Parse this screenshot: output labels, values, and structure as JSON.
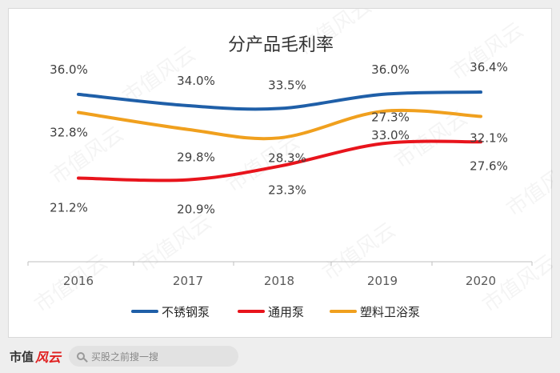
{
  "chart_data": {
    "type": "line",
    "title": "分产品毛利率",
    "x": [
      "2016",
      "2017",
      "2018",
      "2019",
      "2020"
    ],
    "series": [
      {
        "name": "不锈钢泵",
        "values": [
          36.0,
          34.0,
          33.5,
          36.0,
          36.4
        ],
        "labels": [
          "36.0%",
          "34.0%",
          "33.5%",
          "36.0%",
          "36.4%"
        ],
        "color": "#1f5fa8"
      },
      {
        "name": "通用泵",
        "values": [
          21.2,
          20.9,
          23.3,
          27.3,
          27.6
        ],
        "labels": [
          "21.2%",
          "20.9%",
          "23.3%",
          "27.3%",
          "27.6%"
        ],
        "color": "#e8141c"
      },
      {
        "name": "塑料卫浴泵",
        "values": [
          32.8,
          29.8,
          28.3,
          33.0,
          32.1
        ],
        "labels": [
          "32.8%",
          "29.8%",
          "28.3%",
          "33.0%",
          "32.1%"
        ],
        "color": "#f0a01e"
      }
    ],
    "grid": false,
    "legend": "bottom",
    "smooth": true
  },
  "watermark": "市值风云",
  "footer": {
    "brand": "市值",
    "brand_mark": "风云",
    "search_placeholder": "买股之前搜一搜",
    "search_icon": "search-icon"
  }
}
